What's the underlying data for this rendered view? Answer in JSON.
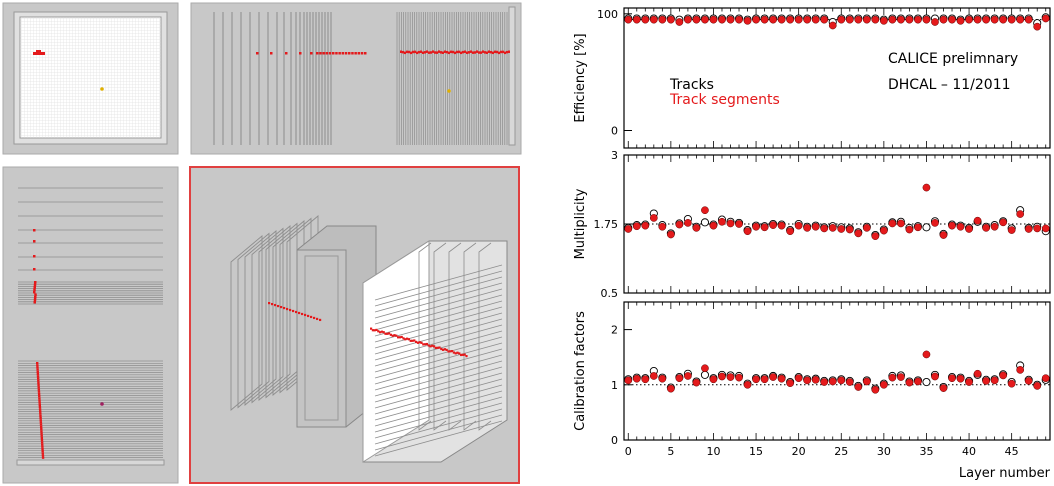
{
  "colors": {
    "tracks": "#ffffff",
    "segments": "#e41a1c",
    "highlight_border": "#e04040",
    "panel_bg": "#c8c8c8"
  },
  "views": [
    {
      "name": "front-view",
      "highlighted": false
    },
    {
      "name": "side-view",
      "highlighted": false
    },
    {
      "name": "top-view",
      "highlighted": false
    },
    {
      "name": "3d-view",
      "highlighted": true
    }
  ],
  "annotation": {
    "line1": "CALICE prelimnary",
    "line2": "DHCAL – 11/2011"
  },
  "chart_data": [
    {
      "type": "scatter",
      "ylabel": "Efficiency [%]",
      "ylim": [
        -15,
        105
      ],
      "yticks": [
        "0",
        "100"
      ],
      "reference": 95,
      "legend": [
        "Tracks",
        "Track segments"
      ],
      "series": [
        {
          "name": "Tracks",
          "values": [
            96,
            96,
            96,
            96,
            96,
            96,
            95,
            96,
            96,
            96,
            96,
            96,
            96,
            96,
            95,
            96,
            96,
            96,
            96,
            96,
            96,
            96,
            96,
            96,
            93,
            96,
            96,
            96,
            96,
            96,
            95,
            96,
            96,
            96,
            96,
            96,
            96,
            96,
            96,
            95,
            96,
            96,
            96,
            96,
            96,
            96,
            96,
            96,
            92,
            97
          ]
        },
        {
          "name": "Track segments",
          "values": [
            95,
            95,
            95,
            95,
            95,
            95,
            93,
            95,
            95,
            95,
            95,
            95,
            95,
            95,
            94,
            95,
            95,
            95,
            95,
            95,
            95,
            95,
            95,
            95,
            90,
            95,
            95,
            95,
            95,
            95,
            94,
            95,
            95,
            95,
            95,
            95,
            93,
            95,
            95,
            94,
            95,
            95,
            95,
            95,
            95,
            95,
            95,
            95,
            89,
            96
          ]
        }
      ]
    },
    {
      "type": "scatter",
      "ylabel": "Multiplicity",
      "ylim": [
        0.5,
        3
      ],
      "yticks": [
        "0.5",
        "1.75",
        "3"
      ],
      "reference": 1.75,
      "series": [
        {
          "name": "Tracks",
          "values": [
            1.68,
            1.73,
            1.74,
            1.94,
            1.73,
            1.58,
            1.76,
            1.84,
            1.7,
            1.78,
            1.74,
            1.83,
            1.79,
            1.77,
            1.64,
            1.72,
            1.71,
            1.75,
            1.74,
            1.64,
            1.75,
            1.7,
            1.72,
            1.69,
            1.71,
            1.69,
            1.67,
            1.6,
            1.7,
            1.55,
            1.65,
            1.78,
            1.79,
            1.68,
            1.71,
            1.69,
            1.8,
            1.57,
            1.74,
            1.72,
            1.68,
            1.79,
            1.7,
            1.73,
            1.8,
            1.67,
            2.0,
            1.68,
            1.7,
            1.62
          ]
        },
        {
          "name": "Track segments",
          "values": [
            1.66,
            1.71,
            1.72,
            1.86,
            1.7,
            1.56,
            1.74,
            1.77,
            1.68,
            2.0,
            1.72,
            1.79,
            1.76,
            1.75,
            1.62,
            1.7,
            1.69,
            1.73,
            1.72,
            1.62,
            1.72,
            1.68,
            1.7,
            1.67,
            1.68,
            1.66,
            1.65,
            1.58,
            1.68,
            1.53,
            1.63,
            1.76,
            1.76,
            1.65,
            1.69,
            2.41,
            1.77,
            1.55,
            1.72,
            1.7,
            1.66,
            1.81,
            1.68,
            1.7,
            1.78,
            1.64,
            1.93,
            1.66,
            1.67,
            1.67
          ]
        }
      ]
    },
    {
      "type": "scatter",
      "ylabel": "Calibration factors",
      "ylim": [
        0,
        2.5
      ],
      "yticks": [
        "0",
        "1",
        "2"
      ],
      "reference": 1.0,
      "xlabel": "Layer number",
      "xlim": [
        -0.5,
        49.5
      ],
      "xticks": [
        "0",
        "5",
        "10",
        "15",
        "20",
        "25",
        "30",
        "35",
        "40",
        "45"
      ],
      "series": [
        {
          "name": "Tracks",
          "values": [
            1.1,
            1.13,
            1.12,
            1.25,
            1.13,
            0.95,
            1.14,
            1.2,
            1.06,
            1.18,
            1.12,
            1.18,
            1.17,
            1.16,
            1.02,
            1.12,
            1.12,
            1.16,
            1.13,
            1.05,
            1.14,
            1.1,
            1.11,
            1.07,
            1.08,
            1.1,
            1.07,
            0.98,
            1.08,
            0.93,
            1.02,
            1.16,
            1.17,
            1.06,
            1.08,
            1.05,
            1.18,
            0.96,
            1.14,
            1.13,
            1.07,
            1.18,
            1.09,
            1.1,
            1.19,
            1.05,
            1.35,
            1.09,
            1.0,
            1.09
          ]
        },
        {
          "name": "Track segments",
          "values": [
            1.08,
            1.11,
            1.1,
            1.16,
            1.11,
            0.93,
            1.12,
            1.16,
            1.04,
            1.3,
            1.1,
            1.15,
            1.14,
            1.13,
            1.0,
            1.1,
            1.1,
            1.14,
            1.11,
            1.03,
            1.12,
            1.08,
            1.09,
            1.05,
            1.06,
            1.08,
            1.05,
            0.96,
            1.06,
            0.91,
            1.0,
            1.13,
            1.14,
            1.04,
            1.06,
            1.55,
            1.15,
            0.94,
            1.12,
            1.11,
            1.05,
            1.2,
            1.07,
            1.08,
            1.17,
            1.02,
            1.27,
            1.07,
            0.98,
            1.12
          ]
        }
      ]
    }
  ]
}
